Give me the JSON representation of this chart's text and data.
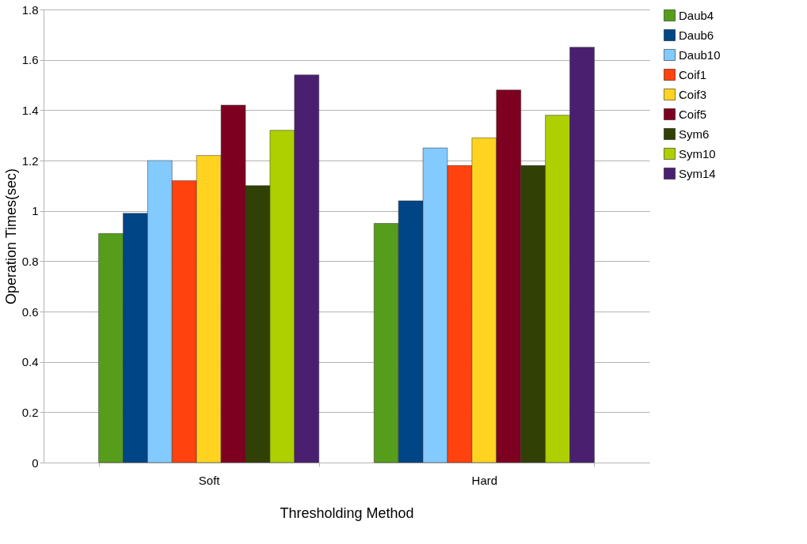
{
  "chart_data": {
    "type": "bar",
    "xlabel": "Thresholding Method",
    "ylabel": "Operation Times(sec)",
    "categories": [
      "Soft",
      "Hard"
    ],
    "series": [
      {
        "name": "Daub4",
        "color": "#579d1c",
        "values": [
          0.91,
          0.95
        ]
      },
      {
        "name": "Daub6",
        "color": "#004586",
        "values": [
          0.99,
          1.04
        ]
      },
      {
        "name": "Daub10",
        "color": "#83caff",
        "values": [
          1.2,
          1.25
        ]
      },
      {
        "name": "Coif1",
        "color": "#ff420e",
        "values": [
          1.12,
          1.18
        ]
      },
      {
        "name": "Coif3",
        "color": "#ffd320",
        "values": [
          1.22,
          1.29
        ]
      },
      {
        "name": "Coif5",
        "color": "#7e0021",
        "values": [
          1.42,
          1.48
        ]
      },
      {
        "name": "Sym6",
        "color": "#314004",
        "values": [
          1.1,
          1.18
        ]
      },
      {
        "name": "Sym10",
        "color": "#aecf00",
        "values": [
          1.32,
          1.38
        ]
      },
      {
        "name": "Sym14",
        "color": "#4b1f6f",
        "values": [
          1.54,
          1.65
        ]
      }
    ],
    "ylim": [
      0,
      1.8
    ],
    "yticks": [
      0,
      0.2,
      0.4,
      0.6,
      0.8,
      1,
      1.2,
      1.4,
      1.6,
      1.8
    ],
    "grid": "y",
    "legend": "right"
  }
}
